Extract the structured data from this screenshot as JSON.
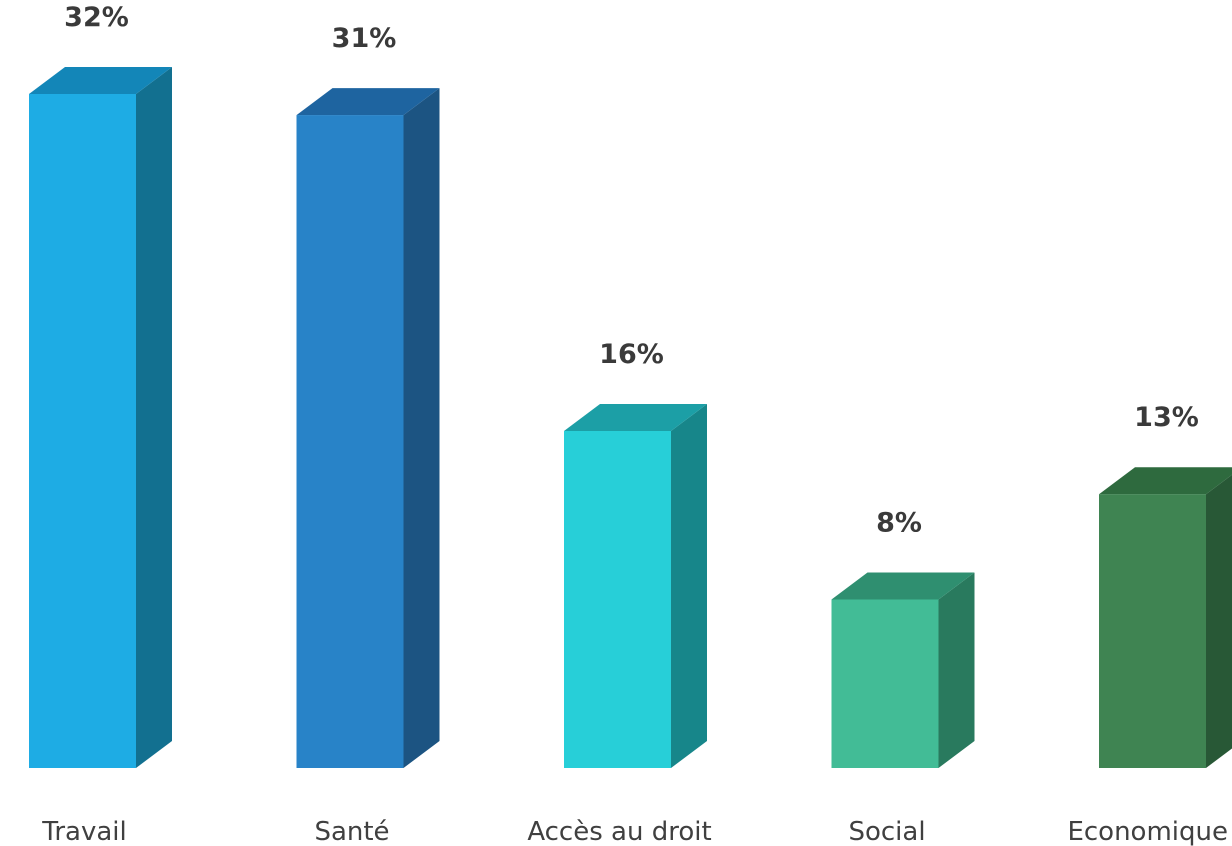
{
  "chart_data": {
    "type": "bar",
    "style": "3d",
    "categories": [
      "Travail",
      "Santé",
      "Accès au droit",
      "Social",
      "Economique"
    ],
    "values": [
      32,
      31,
      16,
      8,
      13
    ],
    "value_labels": [
      "32%",
      "31%",
      "16%",
      "8%",
      "13%"
    ],
    "unit": "%",
    "ylim": [
      0,
      33
    ],
    "grid": false,
    "legend": "none",
    "colors": [
      {
        "front": "#1eace4",
        "top": "#1386b8",
        "side": "#127090"
      },
      {
        "front": "#2883c8",
        "top": "#1e64a0",
        "side": "#1c5482"
      },
      {
        "front": "#27cfd8",
        "top": "#1c9fa6",
        "side": "#17868a"
      },
      {
        "front": "#42bc96",
        "top": "#2f8f70",
        "side": "#297a5e"
      },
      {
        "front": "#3f8452",
        "top": "#2e6a3e",
        "side": "#285836"
      }
    ]
  }
}
